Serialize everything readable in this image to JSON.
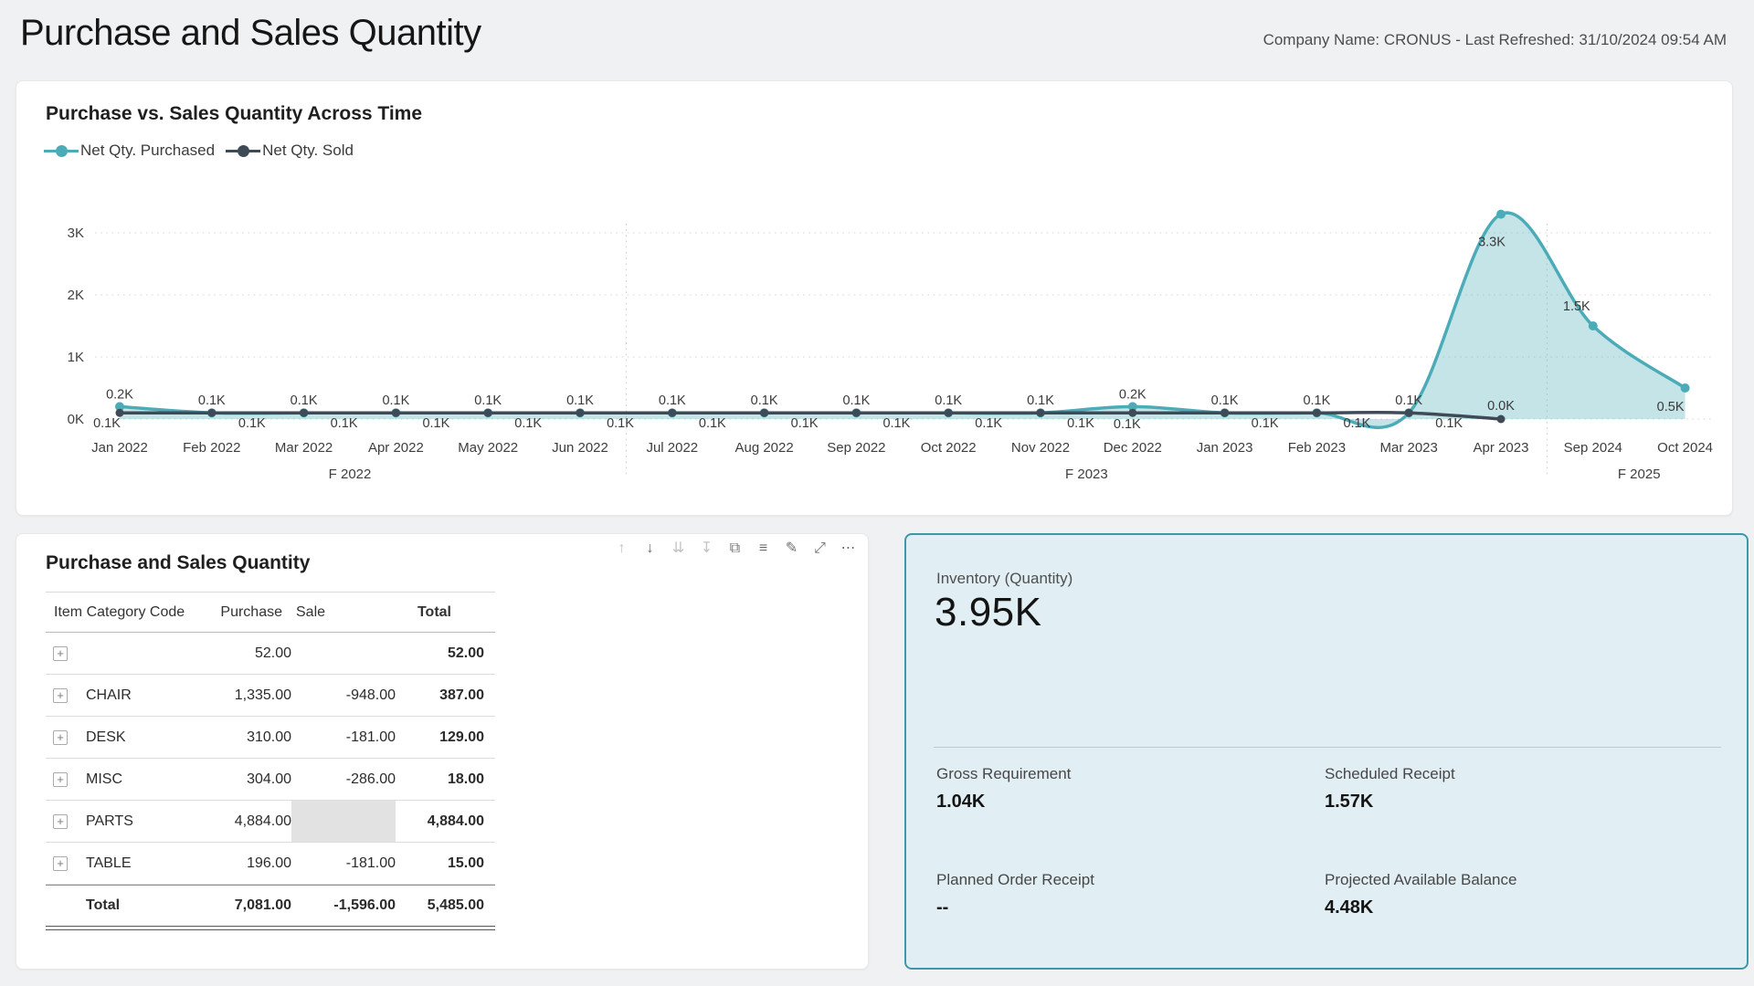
{
  "page": {
    "title": "Purchase and Sales Quantity",
    "meta": "Company Name: CRONUS - Last Refreshed: 31/10/2024 09:54 AM"
  },
  "chart_data": {
    "type": "line",
    "title": "Purchase vs. Sales Quantity Across Time",
    "legend_position": "top-left",
    "grid": "dotted-horizontal",
    "ylim": [
      0,
      3.55
    ],
    "y_ticks": [
      {
        "label": "0K",
        "value": 0
      },
      {
        "label": "1K",
        "value": 1
      },
      {
        "label": "2K",
        "value": 2
      },
      {
        "label": "3K",
        "value": 3
      }
    ],
    "categories": [
      "Jan 2022",
      "Feb 2022",
      "Mar 2022",
      "Apr 2022",
      "May 2022",
      "Jun 2022",
      "Jul 2022",
      "Aug 2022",
      "Sep 2022",
      "Oct 2022",
      "Nov 2022",
      "Dec 2022",
      "Jan 2023",
      "Feb 2023",
      "Mar 2023",
      "Apr 2023",
      "Sep 2024",
      "Oct 2024"
    ],
    "fiscal_groups": [
      {
        "label": "F 2022",
        "from": 0,
        "to": 5
      },
      {
        "label": "F 2023",
        "from": 6,
        "to": 15
      },
      {
        "label": "F 2025",
        "from": 16,
        "to": 17
      }
    ],
    "series": [
      {
        "name": "Net Qty. Purchased",
        "color": "#4BACB8",
        "fill": "rgba(75,172,184,0.33)",
        "values": [
          0.2,
          0.1,
          0.1,
          0.1,
          0.1,
          0.1,
          0.1,
          0.1,
          0.1,
          0.1,
          0.1,
          0.2,
          0.1,
          0.1,
          0.1,
          3.3,
          1.5,
          0.5
        ],
        "labels": [
          "0.2K",
          "0.1K",
          "0.1K",
          "0.1K",
          "0.1K",
          "0.1K",
          "0.1K",
          "0.1K",
          "0.1K",
          "0.1K",
          "0.1K",
          "0.2K",
          "0.1K",
          "0.1K",
          "0.1K",
          "3.3K",
          "1.5K",
          "0.5K"
        ]
      },
      {
        "name": "Net Qty. Sold",
        "color": "#3F4A57",
        "fill": "none",
        "values": [
          0.1,
          0.1,
          0.1,
          0.1,
          0.1,
          0.1,
          0.1,
          0.1,
          0.1,
          0.1,
          0.1,
          0.1,
          0.1,
          0.1,
          0.1,
          0.0
        ],
        "labels": [
          "0.1K",
          "0.1K",
          "0.1K",
          "0.1K",
          "0.1K",
          "0.1K",
          "0.1K",
          "0.1K",
          "0.1K",
          "0.1K",
          "0.1K",
          "0.1K",
          "0.1K",
          "0.1K",
          "0.1K",
          "0.0K"
        ]
      }
    ]
  },
  "table": {
    "title": "Purchase and Sales Quantity",
    "columns": [
      "Item Category Code",
      "Purchase",
      "Sale",
      "Total"
    ],
    "rows": [
      {
        "code": "",
        "purchase": "52.00",
        "sale": "",
        "total": "52.00"
      },
      {
        "code": "CHAIR",
        "purchase": "1,335.00",
        "sale": "-948.00",
        "total": "387.00"
      },
      {
        "code": "DESK",
        "purchase": "310.00",
        "sale": "-181.00",
        "total": "129.00"
      },
      {
        "code": "MISC",
        "purchase": "304.00",
        "sale": "-286.00",
        "total": "18.00"
      },
      {
        "code": "PARTS",
        "purchase": "4,884.00",
        "sale": "",
        "total": "4,884.00",
        "sale_highlight": true
      },
      {
        "code": "TABLE",
        "purchase": "196.00",
        "sale": "-181.00",
        "total": "15.00"
      }
    ],
    "total_row": {
      "code": "Total",
      "purchase": "7,081.00",
      "sale": "-1,596.00",
      "total": "5,485.00"
    },
    "toolbar": [
      {
        "name": "drill-up-icon",
        "glyph": "↑",
        "disabled": true
      },
      {
        "name": "drill-down-icon",
        "glyph": "↓",
        "disabled": false
      },
      {
        "name": "next-level-icon",
        "glyph": "⇊",
        "disabled": true
      },
      {
        "name": "expand-all-icon",
        "glyph": "↧",
        "disabled": true
      },
      {
        "name": "copy-icon",
        "glyph": "⧉",
        "disabled": false
      },
      {
        "name": "filter-icon",
        "glyph": "≡",
        "disabled": false
      },
      {
        "name": "edit-icon",
        "glyph": "✎",
        "disabled": false
      },
      {
        "name": "focus-mode-icon",
        "glyph": "⤢",
        "disabled": false
      },
      {
        "name": "more-options-icon",
        "glyph": "⋯",
        "disabled": false
      }
    ]
  },
  "card": {
    "title": "Inventory (Quantity)",
    "value": "3.95K",
    "metrics": [
      {
        "label": "Gross Requirement",
        "value": "1.04K"
      },
      {
        "label": "Scheduled Receipt",
        "value": "1.57K"
      },
      {
        "label": "Planned Order Receipt",
        "value": "--"
      },
      {
        "label": "Projected Available Balance",
        "value": "4.48K"
      }
    ],
    "colors": {
      "bg": "#e1eff4",
      "border": "#3e98a6"
    }
  }
}
